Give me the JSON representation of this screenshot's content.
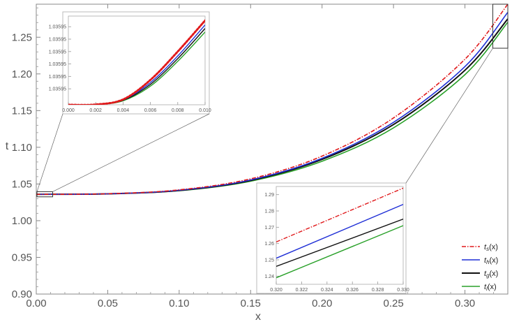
{
  "chart_data": {
    "type": "line",
    "xlabel": "x",
    "ylabel": "t",
    "xlim": [
      0,
      0.33
    ],
    "ylim": [
      0.9,
      1.295
    ],
    "xticks": [
      "0.00",
      "0.05",
      "0.10",
      "0.15",
      "0.20",
      "0.25",
      "0.30"
    ],
    "yticks": [
      "0.90",
      "0.95",
      "1.00",
      "1.05",
      "1.10",
      "1.15",
      "1.20",
      "1.25"
    ],
    "legend_position": "bottom-right",
    "series": [
      {
        "name": "ts(x)",
        "name_main": "t",
        "name_sub": "s",
        "name_arg": "(x)",
        "color": "#e0191b",
        "style": "dashdot",
        "x": [
          0,
          0.05,
          0.1,
          0.15,
          0.2,
          0.25,
          0.3,
          0.33
        ],
        "y": [
          1.0359,
          1.0367,
          1.042,
          1.057,
          1.088,
          1.14,
          1.22,
          1.295
        ]
      },
      {
        "name": "th(x)",
        "name_main": "t",
        "name_sub": "h",
        "name_arg": "(x)",
        "color": "#1f2fd6",
        "style": "solid",
        "x": [
          0,
          0.05,
          0.1,
          0.15,
          0.2,
          0.25,
          0.3,
          0.33
        ],
        "y": [
          1.0359,
          1.0366,
          1.0415,
          1.0555,
          1.085,
          1.134,
          1.21,
          1.284
        ]
      },
      {
        "name": "tg(x)",
        "name_main": "t",
        "name_sub": "g",
        "name_arg": "(x)",
        "color": "#111111",
        "style": "solid",
        "x": [
          0,
          0.05,
          0.1,
          0.15,
          0.2,
          0.25,
          0.3,
          0.33
        ],
        "y": [
          1.0359,
          1.0366,
          1.0412,
          1.0548,
          1.0835,
          1.131,
          1.205,
          1.275
        ]
      },
      {
        "name": "tl(x)",
        "name_main": "t",
        "name_sub": "l",
        "name_arg": "(x)",
        "color": "#2aa12a",
        "style": "solid",
        "x": [
          0,
          0.05,
          0.1,
          0.15,
          0.2,
          0.25,
          0.3,
          0.33
        ],
        "y": [
          1.0359,
          1.0365,
          1.0408,
          1.0538,
          1.081,
          1.1265,
          1.199,
          1.2705
        ]
      }
    ],
    "insets": [
      {
        "position": "top-left",
        "xlim": [
          0,
          0.01
        ],
        "ylim": [
          0,
          1
        ],
        "xticks": [
          "0.000",
          "0.002",
          "0.004",
          "0.006",
          "0.008",
          "0.010"
        ],
        "yticks": [
          "1.03595",
          "1.03595",
          "1.03595",
          "1.03595",
          "1.03595",
          "1.03595"
        ],
        "series": [
          {
            "color": "#e0191b",
            "style": "dotted",
            "x": [
              0,
              0.002,
              0.004,
              0.006,
              0.008,
              0.01
            ],
            "y": [
              0.0,
              0.003,
              0.06,
              0.28,
              0.6,
              0.95
            ]
          },
          {
            "color": "#1f2fd6",
            "style": "solid",
            "x": [
              0,
              0.002,
              0.004,
              0.006,
              0.008,
              0.01
            ],
            "y": [
              0.0,
              0.003,
              0.055,
              0.25,
              0.55,
              0.9
            ]
          },
          {
            "color": "#111111",
            "style": "solid",
            "x": [
              0,
              0.002,
              0.004,
              0.006,
              0.008,
              0.01
            ],
            "y": [
              0.0,
              0.003,
              0.05,
              0.23,
              0.52,
              0.86
            ]
          },
          {
            "color": "#2aa12a",
            "style": "solid",
            "x": [
              0,
              0.002,
              0.004,
              0.006,
              0.008,
              0.01
            ],
            "y": [
              0.0,
              0.002,
              0.045,
              0.21,
              0.49,
              0.82
            ]
          }
        ]
      },
      {
        "position": "bottom-center",
        "xlim": [
          0.32,
          0.33
        ],
        "ylim": [
          1.235,
          1.295
        ],
        "xticks": [
          "0.320",
          "0.322",
          "0.324",
          "0.326",
          "0.328",
          "0.330"
        ],
        "yticks": [
          "1.24",
          "1.25",
          "1.26",
          "1.27",
          "1.28",
          "1.29"
        ],
        "series": [
          {
            "color": "#e0191b",
            "style": "dashdot",
            "x": [
              0.32,
              0.33
            ],
            "y": [
              1.261,
              1.294
            ]
          },
          {
            "color": "#1f2fd6",
            "style": "solid",
            "x": [
              0.32,
              0.33
            ],
            "y": [
              1.251,
              1.284
            ]
          },
          {
            "color": "#111111",
            "style": "solid",
            "x": [
              0.32,
              0.33
            ],
            "y": [
              1.246,
              1.275
            ]
          },
          {
            "color": "#2aa12a",
            "style": "solid",
            "x": [
              0.32,
              0.33
            ],
            "y": [
              1.239,
              1.271
            ]
          }
        ]
      }
    ]
  }
}
